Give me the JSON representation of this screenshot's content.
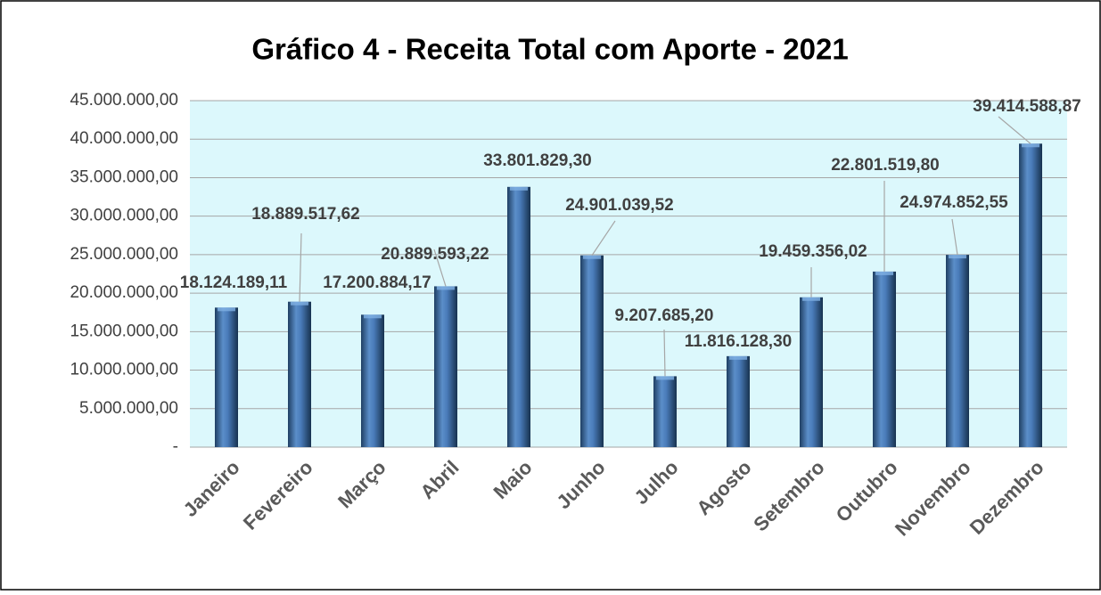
{
  "chart_data": {
    "type": "bar",
    "title": "Gráfico 4 - Receita Total com Aporte - 2021",
    "categories": [
      "Janeiro",
      "Fevereiro",
      "Março",
      "Abril",
      "Maio",
      "Junho",
      "Julho",
      "Agosto",
      "Setembro",
      "Outubro",
      "Novembro",
      "Dezembro"
    ],
    "values": [
      18124189.11,
      18889517.62,
      17200884.17,
      20889593.22,
      33801829.3,
      24901039.52,
      9207685.2,
      11816128.3,
      19459356.02,
      22801519.8,
      24974852.55,
      39414588.87
    ],
    "value_labels": [
      "18.124.189,11",
      "18.889.517,62",
      "17.200.884,17",
      "20.889.593,22",
      "33.801.829,30",
      "24.901.039,52",
      "9.207.685,20",
      "11.816.128,30",
      "19.459.356,02",
      "22.801.519,80",
      "24.974.852,55",
      "39.414.588,87"
    ],
    "color": "#4a7cba",
    "ylim": [
      0,
      45000000
    ],
    "yticks": [
      {
        "value": 0,
        "label": "-"
      },
      {
        "value": 5000000,
        "label": "5.000.000,00"
      },
      {
        "value": 10000000,
        "label": "10.000.000,00"
      },
      {
        "value": 15000000,
        "label": "15.000.000,00"
      },
      {
        "value": 20000000,
        "label": "20.000.000,00"
      },
      {
        "value": 25000000,
        "label": "25.000.000,00"
      },
      {
        "value": 30000000,
        "label": "30.000.000,00"
      },
      {
        "value": 35000000,
        "label": "35.000.000,00"
      },
      {
        "value": 40000000,
        "label": "40.000.000,00"
      },
      {
        "value": 45000000,
        "label": "45.000.000,00"
      }
    ],
    "grid": true
  }
}
